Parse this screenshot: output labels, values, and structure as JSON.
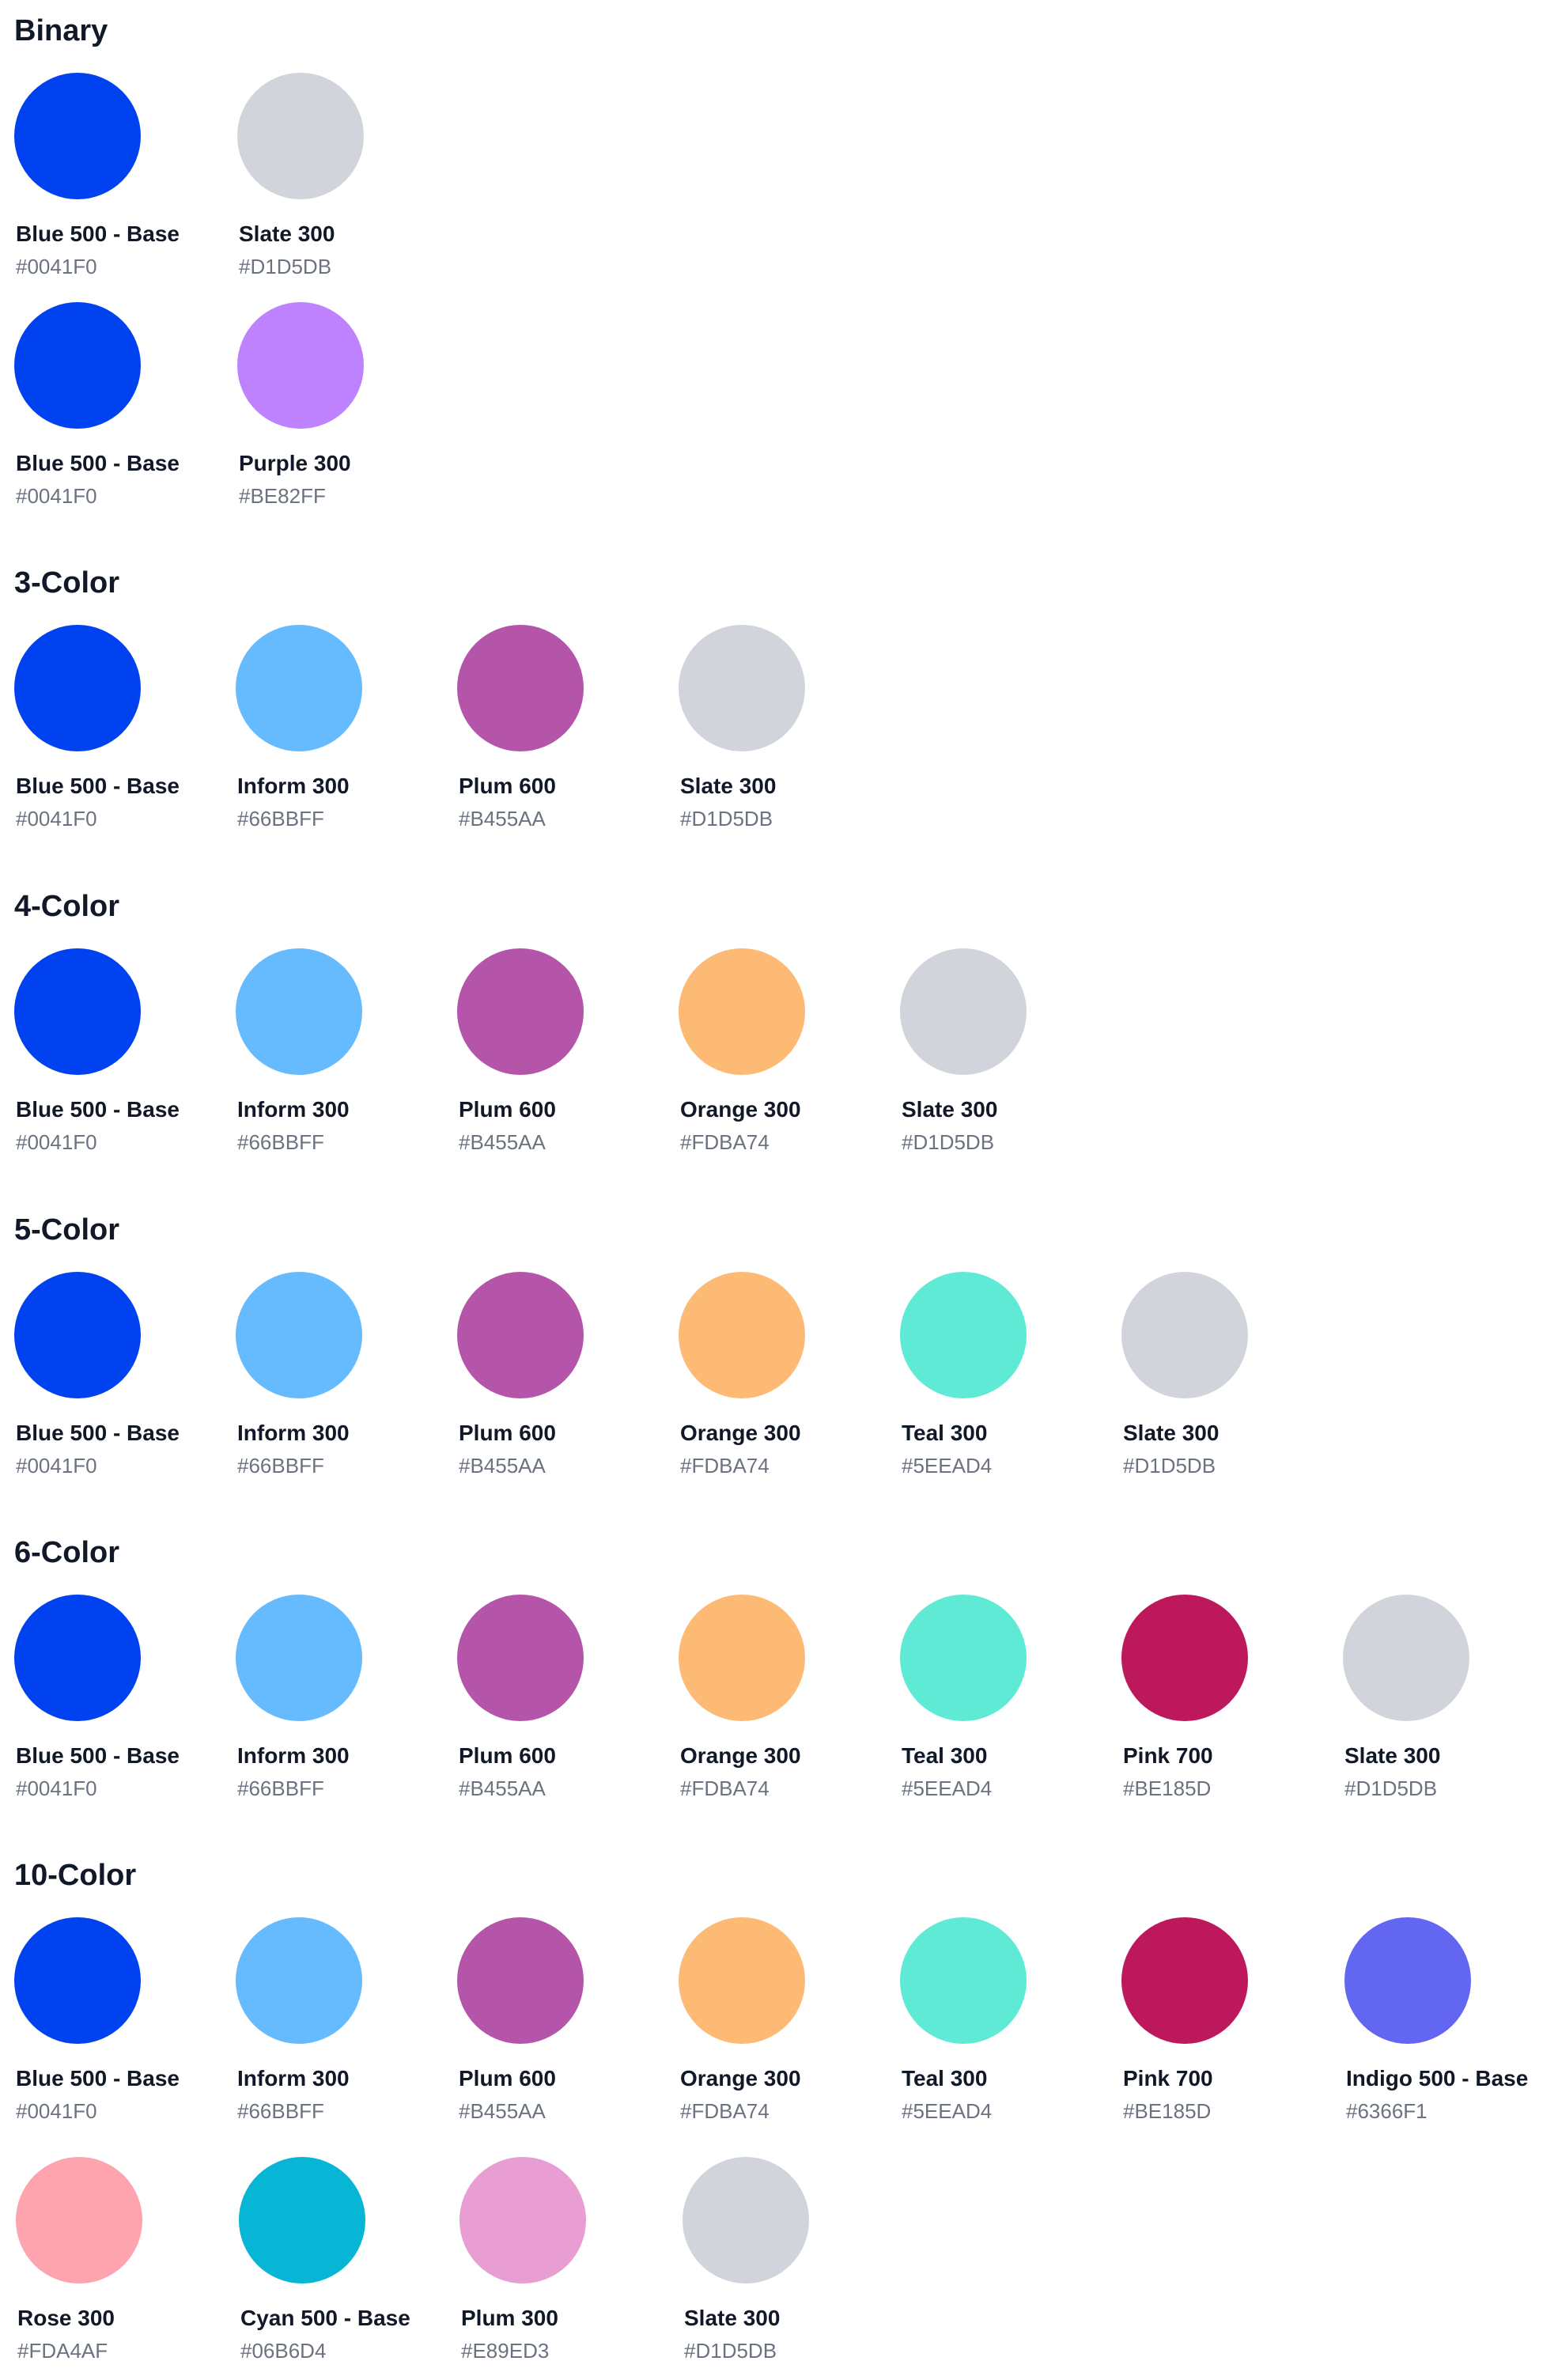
{
  "sections": [
    {
      "title": "Binary",
      "rows": [
        [
          {
            "name": "Blue 500 - Base",
            "hex": "#0041F0",
            "color": "#0041F0"
          },
          {
            "name": "Slate 300",
            "hex": "#D1D5DB",
            "color": "#D1D5DB"
          }
        ],
        [
          {
            "name": "Blue 500 - Base",
            "hex": "#0041F0",
            "color": "#0041F0"
          },
          {
            "name": "Purple 300",
            "hex": "#BE82FF",
            "color": "#BE82FF"
          }
        ]
      ]
    },
    {
      "title": "3-Color",
      "rows": [
        [
          {
            "name": "Blue 500 - Base",
            "hex": "#0041F0",
            "color": "#0041F0"
          },
          {
            "name": "Inform 300",
            "hex": "#66BBFF",
            "color": "#66BBFF"
          },
          {
            "name": "Plum 600",
            "hex": "#B455AA",
            "color": "#B455AA"
          },
          {
            "name": "Slate 300",
            "hex": "#D1D5DB",
            "color": "#D1D5DB"
          }
        ]
      ]
    },
    {
      "title": "4-Color",
      "rows": [
        [
          {
            "name": "Blue 500 - Base",
            "hex": "#0041F0",
            "color": "#0041F0"
          },
          {
            "name": "Inform 300",
            "hex": "#66BBFF",
            "color": "#66BBFF"
          },
          {
            "name": "Plum 600",
            "hex": "#B455AA",
            "color": "#B455AA"
          },
          {
            "name": "Orange 300",
            "hex": "#FDBA74",
            "color": "#FDBA74"
          },
          {
            "name": "Slate 300",
            "hex": "#D1D5DB",
            "color": "#D1D5DB"
          }
        ]
      ]
    },
    {
      "title": "5-Color",
      "rows": [
        [
          {
            "name": "Blue 500 - Base",
            "hex": "#0041F0",
            "color": "#0041F0"
          },
          {
            "name": "Inform 300",
            "hex": "#66BBFF",
            "color": "#66BBFF"
          },
          {
            "name": "Plum 600",
            "hex": "#B455AA",
            "color": "#B455AA"
          },
          {
            "name": "Orange 300",
            "hex": "#FDBA74",
            "color": "#FDBA74"
          },
          {
            "name": "Teal 300",
            "hex": "#5EEAD4",
            "color": "#5EEAD4"
          },
          {
            "name": "Slate 300",
            "hex": "#D1D5DB",
            "color": "#D1D5DB"
          }
        ]
      ]
    },
    {
      "title": "6-Color",
      "rows": [
        [
          {
            "name": "Blue 500 - Base",
            "hex": "#0041F0",
            "color": "#0041F0"
          },
          {
            "name": "Inform 300",
            "hex": "#66BBFF",
            "color": "#66BBFF"
          },
          {
            "name": "Plum 600",
            "hex": "#B455AA",
            "color": "#B455AA"
          },
          {
            "name": "Orange 300",
            "hex": "#FDBA74",
            "color": "#FDBA74"
          },
          {
            "name": "Teal 300",
            "hex": "#5EEAD4",
            "color": "#5EEAD4"
          },
          {
            "name": "Pink 700",
            "hex": "#BE185D",
            "color": "#BE185D"
          },
          {
            "name": "Slate 300",
            "hex": "#D1D5DB",
            "color": "#D1D5DB"
          }
        ]
      ]
    },
    {
      "title": "10-Color",
      "rows": [
        [
          {
            "name": "Blue 500 - Base",
            "hex": "#0041F0",
            "color": "#0041F0"
          },
          {
            "name": "Inform 300",
            "hex": "#66BBFF",
            "color": "#66BBFF"
          },
          {
            "name": "Plum 600",
            "hex": "#B455AA",
            "color": "#B455AA"
          },
          {
            "name": "Orange 300",
            "hex": "#FDBA74",
            "color": "#FDBA74"
          },
          {
            "name": "Teal 300",
            "hex": "#5EEAD4",
            "color": "#5EEAD4"
          },
          {
            "name": "Pink 700",
            "hex": "#BE185D",
            "color": "#BE185D"
          },
          {
            "name": "Indigo 500 - Base",
            "hex": "#6366F1",
            "color": "#6366F1"
          }
        ],
        [
          {
            "name": "Rose 300",
            "hex": "#FDA4AF",
            "color": "#FDA4AF"
          },
          {
            "name": "Cyan 500 - Base",
            "hex": "#06B6D4",
            "color": "#06B6D4"
          },
          {
            "name": "Plum 300",
            "hex": "#E89ED3",
            "color": "#E89ED3"
          },
          {
            "name": "Slate 300",
            "hex": "#D1D5DB",
            "color": "#D1D5DB"
          }
        ]
      ]
    }
  ]
}
